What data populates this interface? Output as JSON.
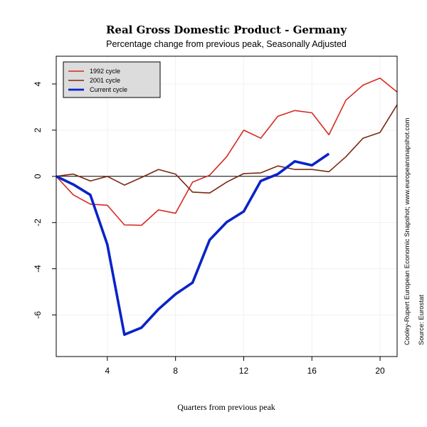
{
  "chart_data": {
    "type": "line",
    "title": "Real Gross Domestic Product - Germany",
    "subtitle": "Percentage change from previous peak, Seasonally Adjusted",
    "xlabel": "Quarters from previous peak",
    "ylabel": "",
    "xlim": [
      1,
      21
    ],
    "ylim": [
      -7.8,
      5.2
    ],
    "x_ticks": [
      4,
      8,
      12,
      16,
      20
    ],
    "y_ticks": [
      -6,
      -4,
      -2,
      0,
      2,
      4
    ],
    "grid": true,
    "legend_position": "top-left",
    "reference_line": 0,
    "series": [
      {
        "name": "1992 cycle",
        "color": "#d62a22",
        "x": [
          1,
          2,
          3,
          4,
          5,
          6,
          7,
          8,
          9,
          10,
          11,
          12,
          13,
          14,
          15,
          16,
          17,
          18,
          19,
          20,
          21
        ],
        "values": [
          0,
          -0.8,
          -1.2,
          -1.25,
          -2.1,
          -2.12,
          -1.45,
          -1.6,
          -0.25,
          0.05,
          0.85,
          2.0,
          1.65,
          2.6,
          2.85,
          2.75,
          1.8,
          3.3,
          3.95,
          4.25,
          3.65
        ]
      },
      {
        "name": "2001 cycle",
        "color": "#7a2a10",
        "x": [
          1,
          2,
          3,
          4,
          5,
          6,
          7,
          8,
          9,
          10,
          11,
          12,
          13,
          14,
          15,
          16,
          17,
          18,
          19,
          20,
          21
        ],
        "values": [
          0,
          0.1,
          -0.2,
          0,
          -0.38,
          -0.05,
          0.3,
          0.1,
          -0.68,
          -0.72,
          -0.25,
          0.12,
          0.15,
          0.45,
          0.3,
          0.3,
          0.2,
          0.85,
          1.65,
          1.9,
          3.1
        ]
      },
      {
        "name": "Current cycle",
        "color": "#0a23c8",
        "x": [
          1,
          2,
          3,
          4,
          5,
          6,
          7,
          8,
          9,
          10,
          11,
          12,
          13,
          14,
          15,
          16,
          17
        ],
        "values": [
          0,
          -0.35,
          -0.8,
          -2.95,
          -6.85,
          -6.55,
          -5.75,
          -5.1,
          -4.6,
          -2.75,
          -1.98,
          -1.52,
          -0.2,
          0.1,
          0.65,
          0.48,
          0.98
        ]
      }
    ],
    "side_notes": [
      "Cooley-Rupert European Economic Snapshot; www.europeansnapshot.com",
      "Source: Eurostat"
    ]
  }
}
